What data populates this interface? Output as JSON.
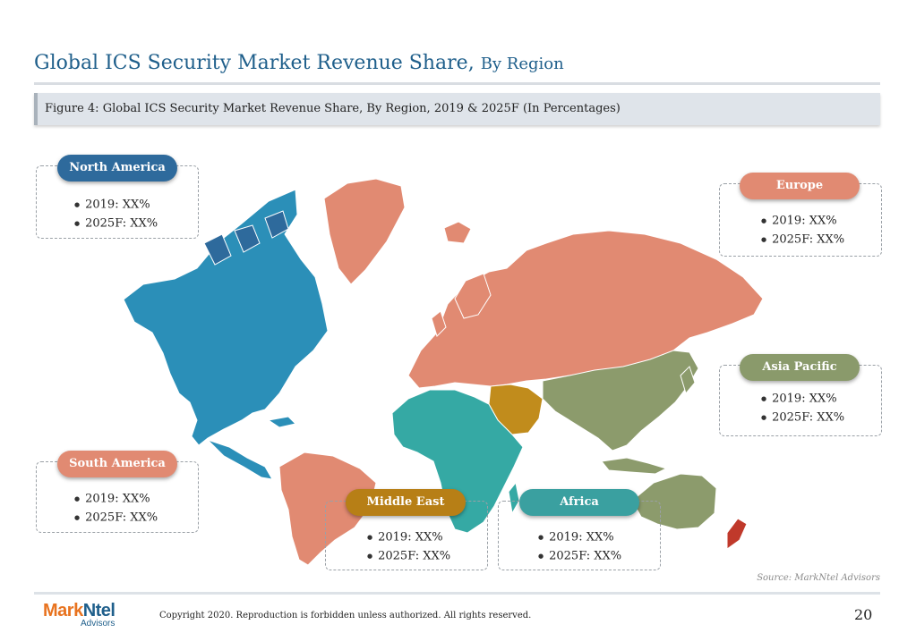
{
  "header": {
    "title_main": "Global ICS Security Market Revenue Share,",
    "title_sub": "By Region"
  },
  "figure": {
    "caption": "Figure 4: Global ICS Security Market Revenue Share, By Region, 2019 & 2025F (In Percentages)"
  },
  "regions": {
    "north_america": {
      "label": "North America",
      "v2019": "2019: XX%",
      "v2025": "2025F: XX%",
      "color": "#2e6a9c"
    },
    "europe": {
      "label": "Europe",
      "v2019": "2019: XX%",
      "v2025": "2025F: XX%",
      "color": "#e18a72"
    },
    "asia_pacific": {
      "label": "Asia Pacific",
      "v2019": "2019: XX%",
      "v2025": "2025F: XX%",
      "color": "#8a9a6b"
    },
    "south_america": {
      "label": "South America",
      "v2019": "2019: XX%",
      "v2025": "2025F: XX%",
      "color": "#e18a72"
    },
    "middle_east": {
      "label": "Middle East",
      "v2019": "2019: XX%",
      "v2025": "2025F: XX%",
      "color": "#b77f16"
    },
    "africa": {
      "label": "Africa",
      "v2019": "2019: XX%",
      "v2025": "2025F: XX%",
      "color": "#3aa0a0"
    }
  },
  "map_colors": {
    "north_america": "#2b8fb8",
    "europe_russia": "#e18a72",
    "asia_pacific": "#8c9b6c",
    "middle_east": "#c18c1c",
    "africa": "#35a9a4",
    "south_america": "#e18a72",
    "new_zealand": "#c0392b"
  },
  "source": "Source: MarkNtel Advisors",
  "footer": {
    "logo_mark": "Mark",
    "logo_ntel": "Ntel",
    "logo_sub": "Advisors",
    "copyright": "Copyright 2020. Reproduction is forbidden unless authorized. All rights reserved.",
    "page": "20"
  }
}
